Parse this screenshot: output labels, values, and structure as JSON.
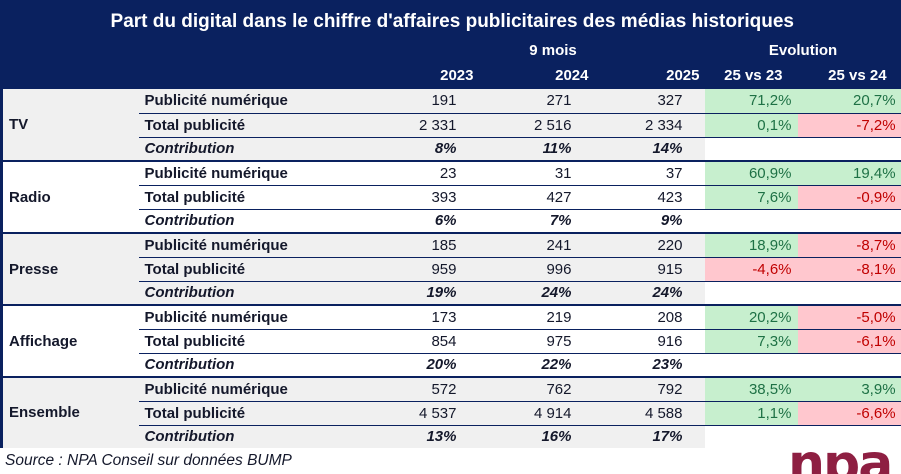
{
  "chart_data": {
    "type": "table",
    "title": "Part du digital dans le chiffre d'affaires publicitaires des médias historiques",
    "column_groups": [
      {
        "label": "9 mois",
        "span": 3
      },
      {
        "label": "Evolution",
        "span": 2
      }
    ],
    "columns": [
      "2023",
      "2024",
      "2025",
      "25 vs 23",
      "25 vs 24"
    ],
    "groups": [
      {
        "name": "TV",
        "rows": [
          {
            "label": "Publicité numérique",
            "values": [
              "191",
              "271",
              "327"
            ],
            "evo": [
              {
                "text": "71,2%",
                "tone": "pos"
              },
              {
                "text": "20,7%",
                "tone": "pos"
              }
            ]
          },
          {
            "label": "Total publicité",
            "values": [
              "2 331",
              "2 516",
              "2 334"
            ],
            "evo": [
              {
                "text": "0,1%",
                "tone": "pos"
              },
              {
                "text": "-7,2%",
                "tone": "neg"
              }
            ]
          },
          {
            "label": "Contribution",
            "values": [
              "8%",
              "11%",
              "14%"
            ],
            "evo": null
          }
        ]
      },
      {
        "name": "Radio",
        "rows": [
          {
            "label": "Publicité numérique",
            "values": [
              "23",
              "31",
              "37"
            ],
            "evo": [
              {
                "text": "60,9%",
                "tone": "pos"
              },
              {
                "text": "19,4%",
                "tone": "pos"
              }
            ]
          },
          {
            "label": "Total publicité",
            "values": [
              "393",
              "427",
              "423"
            ],
            "evo": [
              {
                "text": "7,6%",
                "tone": "pos"
              },
              {
                "text": "-0,9%",
                "tone": "neg"
              }
            ]
          },
          {
            "label": "Contribution",
            "values": [
              "6%",
              "7%",
              "9%"
            ],
            "evo": null
          }
        ]
      },
      {
        "name": "Presse",
        "rows": [
          {
            "label": "Publicité numérique",
            "values": [
              "185",
              "241",
              "220"
            ],
            "evo": [
              {
                "text": "18,9%",
                "tone": "pos"
              },
              {
                "text": "-8,7%",
                "tone": "neg"
              }
            ]
          },
          {
            "label": "Total publicité",
            "values": [
              "959",
              "996",
              "915"
            ],
            "evo": [
              {
                "text": "-4,6%",
                "tone": "neg"
              },
              {
                "text": "-8,1%",
                "tone": "neg"
              }
            ]
          },
          {
            "label": "Contribution",
            "values": [
              "19%",
              "24%",
              "24%"
            ],
            "evo": null
          }
        ]
      },
      {
        "name": "Affichage",
        "rows": [
          {
            "label": "Publicité numérique",
            "values": [
              "173",
              "219",
              "208"
            ],
            "evo": [
              {
                "text": "20,2%",
                "tone": "pos"
              },
              {
                "text": "-5,0%",
                "tone": "neg"
              }
            ]
          },
          {
            "label": "Total publicité",
            "values": [
              "854",
              "975",
              "916"
            ],
            "evo": [
              {
                "text": "7,3%",
                "tone": "pos"
              },
              {
                "text": "-6,1%",
                "tone": "neg"
              }
            ]
          },
          {
            "label": "Contribution",
            "values": [
              "20%",
              "22%",
              "23%"
            ],
            "evo": null
          }
        ]
      },
      {
        "name": "Ensemble",
        "rows": [
          {
            "label": "Publicité numérique",
            "values": [
              "572",
              "762",
              "792"
            ],
            "evo": [
              {
                "text": "38,5%",
                "tone": "pos"
              },
              {
                "text": "3,9%",
                "tone": "pos"
              }
            ]
          },
          {
            "label": "Total publicité",
            "values": [
              "4 537",
              "4 914",
              "4 588"
            ],
            "evo": [
              {
                "text": "1,1%",
                "tone": "pos"
              },
              {
                "text": "-6,6%",
                "tone": "neg"
              }
            ]
          },
          {
            "label": "Contribution",
            "values": [
              "13%",
              "16%",
              "17%"
            ],
            "evo": null
          }
        ]
      }
    ]
  },
  "footer": {
    "source": "Source : NPA Conseil sur données BUMP",
    "logo_text": "npa"
  },
  "colors": {
    "navy": "#0A215F",
    "band_gray": "#F0F0F0",
    "green_bg": "#C7EFCE",
    "green_text": "#1E7145",
    "red_bg": "#FFC7CE",
    "red_text": "#C00000",
    "maroon": "#8E1F42",
    "text_dark": "#14182B"
  }
}
